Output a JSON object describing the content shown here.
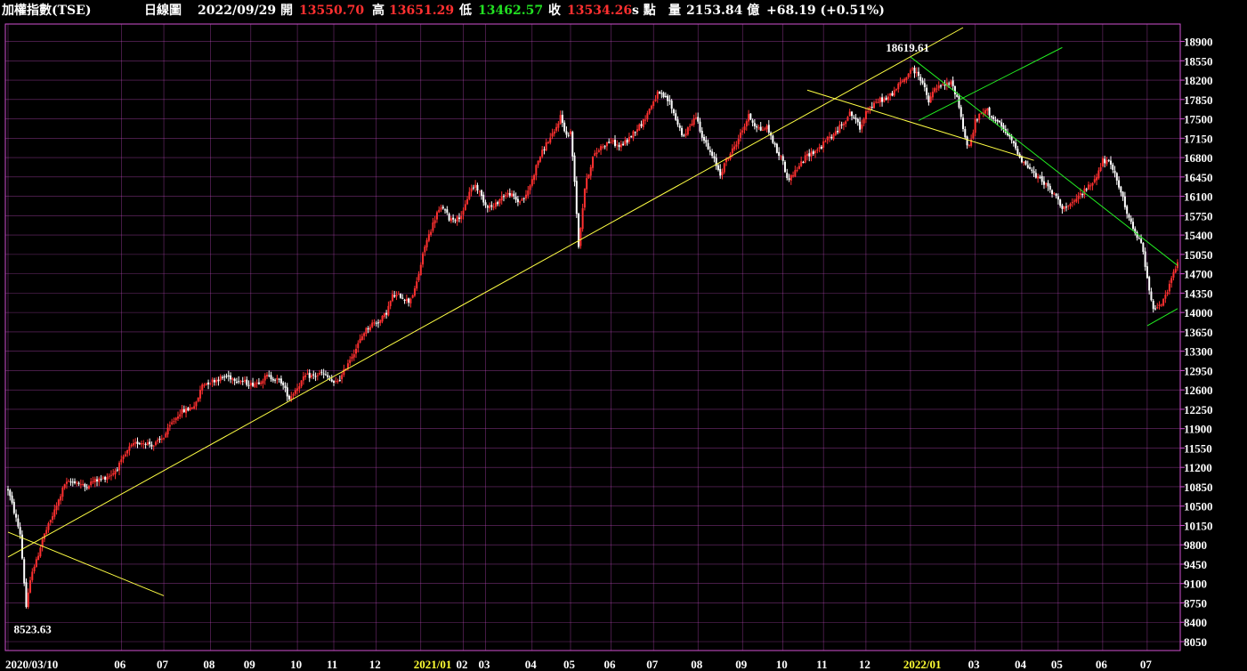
{
  "header": {
    "title": "加權指數(TSE)",
    "period": "日線圖",
    "date": "2022/09/29",
    "open_label": "開",
    "open": "13550.70",
    "high_label": "高",
    "high": "13651.29",
    "low_label": "低",
    "low": "13462.57",
    "close_label": "收",
    "close": "13534.26",
    "unit": "s 點",
    "volume_label": "量",
    "volume": "2153.84 億",
    "change": "+68.19 (+0.51%)"
  },
  "colors": {
    "up": "#ff3030",
    "down": "#ffffff",
    "grid": "#d050d0",
    "trend_yellow": "#ffff44",
    "trend_green": "#22ee22",
    "year": "#ffff33"
  },
  "chart_data": {
    "type": "candlestick",
    "title": "加權指數(TSE) 日線圖",
    "xlabel": "",
    "ylabel": "",
    "ylim": [
      8050,
      19150
    ],
    "yticks": [
      8050,
      8400,
      8750,
      9100,
      9450,
      9800,
      10150,
      10500,
      10850,
      11200,
      11550,
      11900,
      12250,
      12600,
      12950,
      13300,
      13650,
      14000,
      14350,
      14700,
      15050,
      15400,
      15750,
      16100,
      16450,
      16800,
      17150,
      17500,
      17850,
      18200,
      18550,
      18900
    ],
    "xticks": [
      {
        "label": "2020/03/10",
        "t": 0,
        "year": false
      },
      {
        "label": "06",
        "t": 56,
        "year": false
      },
      {
        "label": "07",
        "t": 77,
        "year": false
      },
      {
        "label": "08",
        "t": 100,
        "year": false
      },
      {
        "label": "09",
        "t": 120,
        "year": false
      },
      {
        "label": "10",
        "t": 143,
        "year": false
      },
      {
        "label": "11",
        "t": 161,
        "year": false
      },
      {
        "label": "12",
        "t": 182,
        "year": false
      },
      {
        "label": "2021/01",
        "t": 204,
        "year": true
      },
      {
        "label": "02",
        "t": 225,
        "year": false
      },
      {
        "label": "03",
        "t": 236,
        "year": false
      },
      {
        "label": "04",
        "t": 259,
        "year": false
      },
      {
        "label": "05",
        "t": 278,
        "year": false
      },
      {
        "label": "06",
        "t": 298,
        "year": false
      },
      {
        "label": "07",
        "t": 319,
        "year": false
      },
      {
        "label": "08",
        "t": 341,
        "year": false
      },
      {
        "label": "09",
        "t": 363,
        "year": false
      },
      {
        "label": "10",
        "t": 383,
        "year": false
      },
      {
        "label": "11",
        "t": 403,
        "year": false
      },
      {
        "label": "12",
        "t": 424,
        "year": false
      },
      {
        "label": "2022/01",
        "t": 446,
        "year": true
      },
      {
        "label": "03",
        "t": 478,
        "year": false
      },
      {
        "label": "04",
        "t": 501,
        "year": false
      },
      {
        "label": "05",
        "t": 519,
        "year": false
      },
      {
        "label": "06",
        "t": 541,
        "year": false
      },
      {
        "label": "07",
        "t": 563,
        "year": false
      }
    ],
    "t_range": [
      0,
      578
    ],
    "path_points": [
      [
        0,
        10800
      ],
      [
        6,
        10000
      ],
      [
        9,
        8680
      ],
      [
        12,
        9350
      ],
      [
        14,
        9500
      ],
      [
        17,
        9900
      ],
      [
        20,
        10150
      ],
      [
        24,
        10500
      ],
      [
        28,
        10900
      ],
      [
        33,
        10950
      ],
      [
        38,
        10850
      ],
      [
        42,
        10950
      ],
      [
        47,
        11000
      ],
      [
        52,
        11100
      ],
      [
        56,
        11300
      ],
      [
        60,
        11550
      ],
      [
        64,
        11650
      ],
      [
        68,
        11650
      ],
      [
        72,
        11600
      ],
      [
        77,
        11750
      ],
      [
        81,
        12000
      ],
      [
        85,
        12200
      ],
      [
        89,
        12250
      ],
      [
        93,
        12350
      ],
      [
        96,
        12700
      ],
      [
        100,
        12750
      ],
      [
        104,
        12800
      ],
      [
        108,
        12850
      ],
      [
        112,
        12800
      ],
      [
        116,
        12750
      ],
      [
        120,
        12700
      ],
      [
        124,
        12750
      ],
      [
        128,
        12850
      ],
      [
        132,
        12800
      ],
      [
        135,
        12750
      ],
      [
        139,
        12450
      ],
      [
        143,
        12650
      ],
      [
        147,
        12850
      ],
      [
        151,
        12850
      ],
      [
        155,
        12900
      ],
      [
        159,
        12800
      ],
      [
        161,
        12700
      ],
      [
        165,
        12850
      ],
      [
        168,
        13100
      ],
      [
        172,
        13350
      ],
      [
        176,
        13650
      ],
      [
        180,
        13800
      ],
      [
        184,
        13850
      ],
      [
        187,
        14000
      ],
      [
        190,
        14300
      ],
      [
        194,
        14300
      ],
      [
        198,
        14200
      ],
      [
        201,
        14400
      ],
      [
        203,
        14700
      ],
      [
        206,
        15200
      ],
      [
        209,
        15500
      ],
      [
        212,
        15800
      ],
      [
        215,
        15900
      ],
      [
        218,
        15700
      ],
      [
        222,
        15700
      ],
      [
        225,
        15800
      ],
      [
        228,
        16200
      ],
      [
        231,
        16300
      ],
      [
        234,
        16100
      ],
      [
        236,
        15950
      ],
      [
        240,
        15900
      ],
      [
        244,
        16100
      ],
      [
        248,
        16150
      ],
      [
        252,
        16000
      ],
      [
        256,
        16100
      ],
      [
        259,
        16400
      ],
      [
        262,
        16750
      ],
      [
        266,
        17050
      ],
      [
        270,
        17250
      ],
      [
        273,
        17550
      ],
      [
        276,
        17200
      ],
      [
        278,
        17250
      ],
      [
        280,
        16400
      ],
      [
        282,
        15200
      ],
      [
        285,
        16250
      ],
      [
        289,
        16800
      ],
      [
        293,
        17000
      ],
      [
        298,
        17100
      ],
      [
        302,
        17000
      ],
      [
        306,
        17100
      ],
      [
        310,
        17300
      ],
      [
        314,
        17450
      ],
      [
        318,
        17750
      ],
      [
        321,
        17950
      ],
      [
        324,
        17900
      ],
      [
        327,
        17800
      ],
      [
        330,
        17500
      ],
      [
        334,
        17150
      ],
      [
        337,
        17400
      ],
      [
        340,
        17550
      ],
      [
        343,
        17200
      ],
      [
        346,
        16950
      ],
      [
        349,
        16750
      ],
      [
        352,
        16500
      ],
      [
        355,
        16750
      ],
      [
        359,
        17000
      ],
      [
        363,
        17300
      ],
      [
        366,
        17550
      ],
      [
        369,
        17400
      ],
      [
        372,
        17300
      ],
      [
        375,
        17350
      ],
      [
        378,
        17100
      ],
      [
        380,
        16900
      ],
      [
        383,
        16750
      ],
      [
        385,
        16400
      ],
      [
        388,
        16500
      ],
      [
        391,
        16650
      ],
      [
        395,
        16850
      ],
      [
        398,
        16900
      ],
      [
        402,
        17000
      ],
      [
        405,
        17150
      ],
      [
        408,
        17200
      ],
      [
        412,
        17400
      ],
      [
        416,
        17600
      ],
      [
        419,
        17500
      ],
      [
        421,
        17300
      ],
      [
        424,
        17650
      ],
      [
        428,
        17750
      ],
      [
        431,
        17850
      ],
      [
        434,
        17850
      ],
      [
        438,
        18000
      ],
      [
        441,
        18150
      ],
      [
        444,
        18250
      ],
      [
        446,
        18400
      ],
      [
        448,
        18350
      ],
      [
        450,
        18300
      ],
      [
        452,
        18150
      ],
      [
        455,
        17800
      ],
      [
        458,
        18050
      ],
      [
        462,
        18100
      ],
      [
        466,
        18150
      ],
      [
        469,
        17900
      ],
      [
        472,
        17350
      ],
      [
        474,
        17000
      ],
      [
        476,
        17100
      ],
      [
        478,
        17450
      ],
      [
        481,
        17600
      ],
      [
        484,
        17650
      ],
      [
        487,
        17500
      ],
      [
        490,
        17400
      ],
      [
        493,
        17250
      ],
      [
        497,
        17050
      ],
      [
        501,
        16750
      ],
      [
        505,
        16600
      ],
      [
        508,
        16450
      ],
      [
        511,
        16400
      ],
      [
        515,
        16200
      ],
      [
        519,
        16050
      ],
      [
        521,
        15900
      ],
      [
        523,
        15900
      ],
      [
        526,
        15950
      ],
      [
        529,
        16100
      ],
      [
        532,
        16200
      ],
      [
        536,
        16350
      ],
      [
        539,
        16550
      ],
      [
        541,
        16750
      ],
      [
        544,
        16700
      ],
      [
        547,
        16500
      ],
      [
        550,
        16200
      ],
      [
        552,
        15900
      ],
      [
        555,
        15600
      ],
      [
        557,
        15400
      ],
      [
        560,
        15300
      ],
      [
        563,
        14600
      ],
      [
        566,
        14100
      ],
      [
        569,
        14100
      ],
      [
        571,
        14200
      ],
      [
        574,
        14500
      ],
      [
        578,
        14900
      ]
    ],
    "annotations": [
      {
        "text": "8523.63",
        "t": 9,
        "value": 8523.63
      },
      {
        "text": "18619.61",
        "t": 447,
        "value": 18619.61
      }
    ],
    "trendlines": [
      {
        "color": "yellow",
        "from": [
          0,
          9580
        ],
        "to": [
          472,
          19150
        ]
      },
      {
        "color": "yellow",
        "from": [
          0,
          10030
        ],
        "to": [
          77,
          8880
        ]
      },
      {
        "color": "yellow",
        "from": [
          395,
          18020
        ],
        "to": [
          507,
          16750
        ]
      },
      {
        "color": "green",
        "from": [
          450,
          17470
        ],
        "to": [
          521,
          18790
        ]
      },
      {
        "color": "green",
        "from": [
          446,
          18620
        ],
        "to": [
          578,
          14850
        ]
      },
      {
        "color": "green",
        "from": [
          563,
          13760
        ],
        "to": [
          578,
          14070
        ]
      }
    ]
  }
}
